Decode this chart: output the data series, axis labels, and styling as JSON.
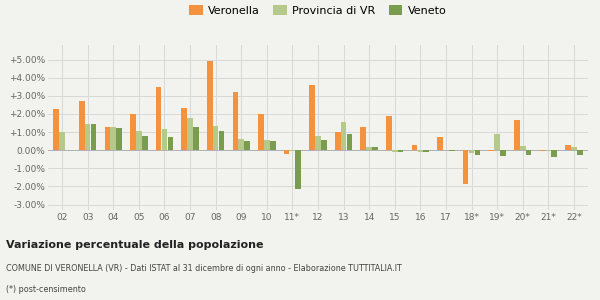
{
  "categories": [
    "02",
    "03",
    "04",
    "05",
    "06",
    "07",
    "08",
    "09",
    "10",
    "11*",
    "12",
    "13",
    "14",
    "15",
    "16",
    "17",
    "18*",
    "19*",
    "20*",
    "21*",
    "22*"
  ],
  "veronella": [
    2.25,
    2.7,
    1.3,
    2.0,
    3.5,
    2.3,
    4.9,
    3.2,
    2.0,
    -0.2,
    3.6,
    1.0,
    1.25,
    1.9,
    0.3,
    0.75,
    -1.85,
    -0.05,
    1.65,
    -0.05,
    0.3
  ],
  "provincia": [
    1.0,
    1.45,
    1.25,
    1.05,
    1.15,
    1.8,
    1.35,
    0.6,
    0.55,
    -0.05,
    0.8,
    1.55,
    0.2,
    -0.1,
    -0.1,
    0.0,
    -0.15,
    0.9,
    0.25,
    -0.05,
    0.15
  ],
  "veneto": [
    0.0,
    1.45,
    1.2,
    0.8,
    0.7,
    1.25,
    1.05,
    0.5,
    0.5,
    -2.15,
    0.55,
    0.9,
    0.18,
    -0.1,
    -0.1,
    -0.05,
    -0.25,
    -0.3,
    -0.25,
    -0.35,
    -0.25
  ],
  "veronella_color": "#f5923e",
  "provincia_color": "#b5c98a",
  "veneto_color": "#7a9c4e",
  "bg_color": "#f2f2ee",
  "grid_color": "#d8d8d8",
  "yticks": [
    -3.0,
    -2.0,
    -1.0,
    0.0,
    1.0,
    2.0,
    3.0,
    4.0,
    5.0
  ],
  "ylim": [
    -3.3,
    5.8
  ],
  "title_bold": "Variazione percentuale della popolazione",
  "footnote1": "COMUNE DI VERONELLA (VR) - Dati ISTAT al 31 dicembre di ogni anno - Elaborazione TUTTITALIA.IT",
  "footnote2": "(*) post-censimento"
}
